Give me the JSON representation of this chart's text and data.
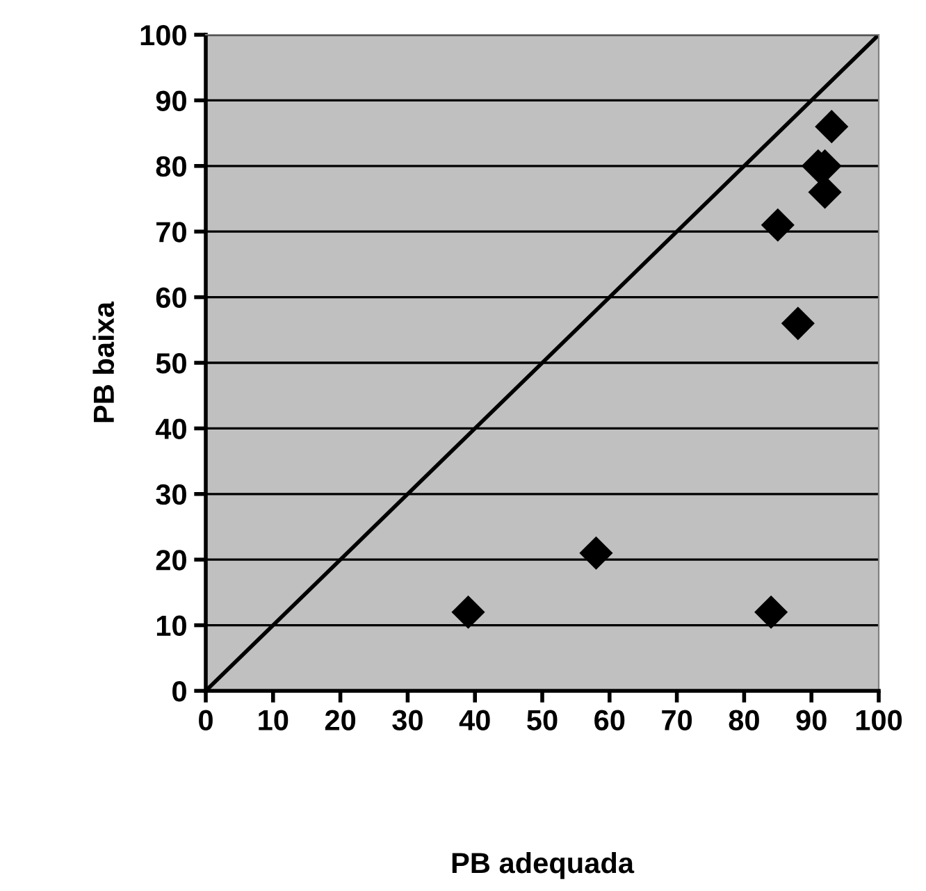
{
  "chart_data": {
    "type": "scatter",
    "xlabel": "PB adequada",
    "ylabel": "PB baixa",
    "xlim": [
      0,
      100
    ],
    "ylim": [
      0,
      100
    ],
    "xticks": [
      0,
      10,
      20,
      30,
      40,
      50,
      60,
      70,
      80,
      90,
      100
    ],
    "yticks": [
      0,
      10,
      20,
      30,
      40,
      50,
      60,
      70,
      80,
      90,
      100
    ],
    "grid": "y",
    "series": [
      {
        "marker": "diamond",
        "color": "#000000",
        "x": [
          39,
          58,
          84,
          85,
          88,
          91,
          92,
          92,
          93
        ],
        "values": [
          12,
          21,
          12,
          71,
          56,
          80,
          80,
          76,
          86
        ]
      },
      {
        "type": "line",
        "color": "#000000",
        "x": [
          0,
          100
        ],
        "values": [
          0,
          100
        ]
      }
    ]
  }
}
